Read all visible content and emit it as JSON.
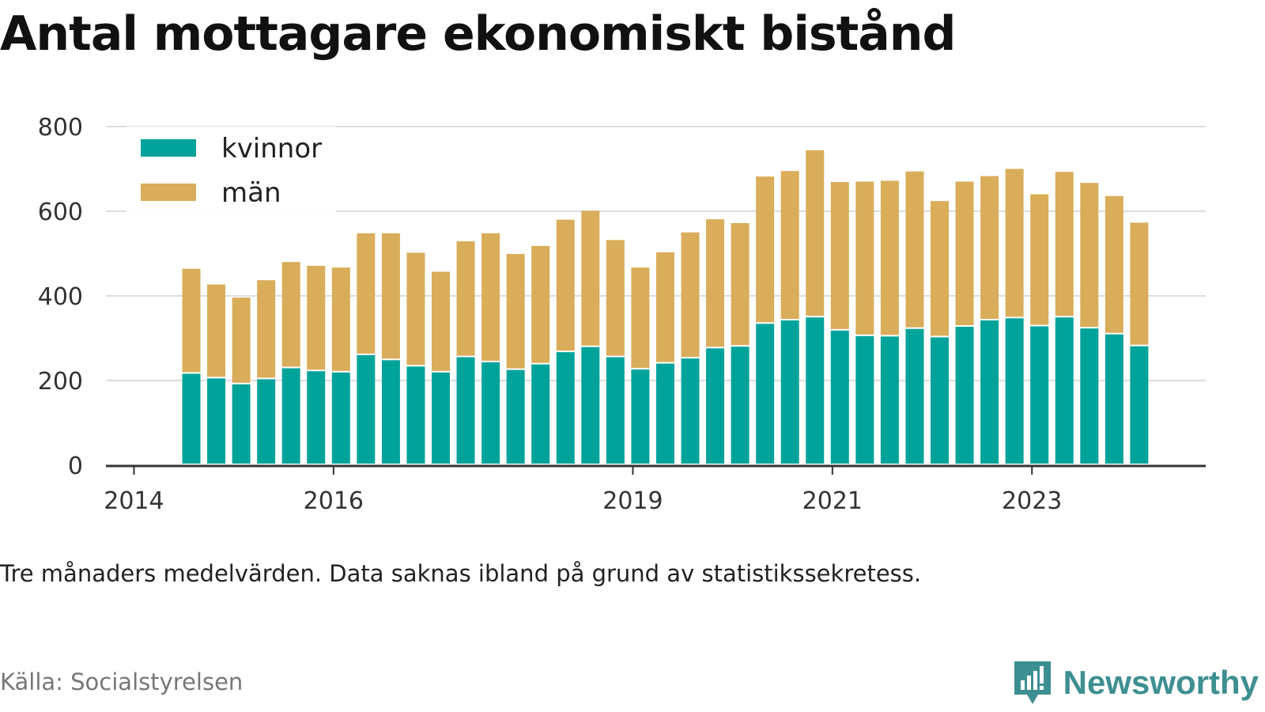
{
  "title": "Antal mottagare ekonomiskt bistånd",
  "note": "Tre månaders medelvärden. Data saknas ibland på grund av statistikssekretess.",
  "source": "Källa: Socialstyrelsen",
  "brand": {
    "name": "Newsworthy",
    "icon": "bar-chart-speech-bubble-icon",
    "color": "#3e8f91"
  },
  "chart_data": {
    "type": "bar",
    "stacked": true,
    "categories": [
      "2014-Q2",
      "2014-Q3",
      "2014-Q4",
      "2015-Q1",
      "2015-Q2",
      "2015-Q3",
      "2015-Q4",
      "2016-Q1",
      "2016-Q2",
      "2016-Q3",
      "2016-Q4",
      "2017-Q1",
      "2017-Q2",
      "2017-Q3",
      "2017-Q4",
      "2018-Q1",
      "2018-Q2",
      "2018-Q3",
      "2018-Q4",
      "2019-Q1",
      "2019-Q2",
      "2019-Q3",
      "2019-Q4",
      "2020-Q1",
      "2020-Q2",
      "2020-Q3",
      "2020-Q4",
      "2021-Q1",
      "2021-Q2",
      "2021-Q3",
      "2021-Q4",
      "2022-Q1",
      "2022-Q2",
      "2022-Q3",
      "2022-Q4",
      "2023-Q1",
      "2023-Q2",
      "2023-Q3",
      "2023-Q4"
    ],
    "x_ticks": [
      "2014",
      "2016",
      "2019",
      "2021",
      "2023"
    ],
    "series": [
      {
        "name": "kvinnor",
        "color": "#00a39a",
        "values": [
          216,
          205,
          191,
          203,
          229,
          222,
          219,
          260,
          248,
          233,
          219,
          255,
          243,
          225,
          238,
          267,
          279,
          255,
          226,
          240,
          252,
          276,
          280,
          334,
          342,
          349,
          318,
          305,
          304,
          322,
          302,
          327,
          342,
          347,
          328,
          349,
          323,
          309,
          281
        ]
      },
      {
        "name": "män",
        "color": "#d9ad59",
        "values": [
          248,
          222,
          205,
          234,
          251,
          249,
          248,
          288,
          300,
          269,
          238,
          274,
          305,
          274,
          280,
          313,
          322,
          277,
          241,
          263,
          298,
          305,
          292,
          348,
          353,
          395,
          351,
          365,
          368,
          372,
          322,
          343,
          341,
          353,
          312,
          344,
          344,
          327,
          292
        ]
      }
    ],
    "y_ticks": [
      0,
      200,
      400,
      600,
      800
    ],
    "ylim": [
      0,
      800
    ],
    "grid": true,
    "legend_position": "top-left"
  }
}
